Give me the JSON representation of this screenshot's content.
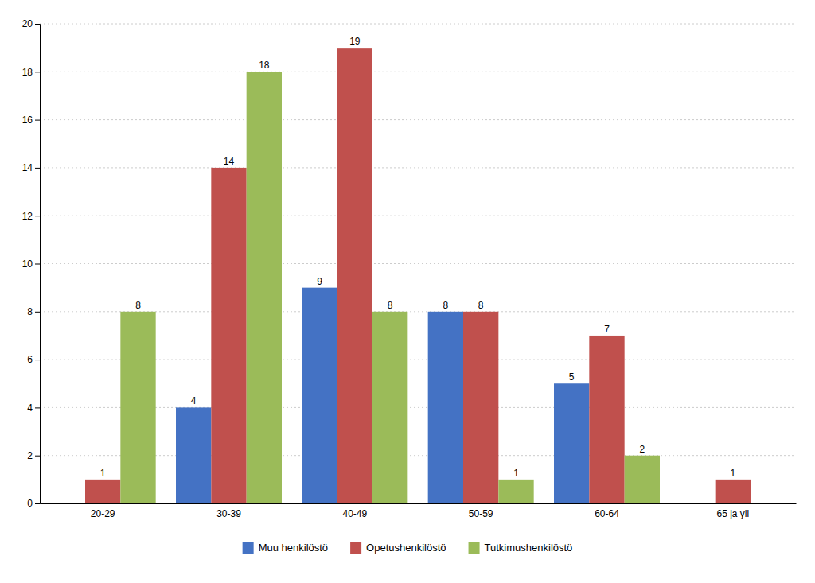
{
  "chart_data": {
    "type": "bar",
    "categories": [
      "20-29",
      "30-39",
      "40-49",
      "50-59",
      "60-64",
      "65 ja yli"
    ],
    "series": [
      {
        "name": "Muu henkilöstö",
        "color": "#4472C4",
        "values": [
          0,
          4,
          9,
          8,
          5,
          0
        ]
      },
      {
        "name": "Opetushenkilöstö",
        "color": "#C0504D",
        "values": [
          1,
          14,
          19,
          8,
          7,
          1
        ]
      },
      {
        "name": "Tutkimushenkilöstö",
        "color": "#9BBB59",
        "values": [
          8,
          18,
          8,
          1,
          2,
          0
        ]
      }
    ],
    "ylim": [
      0,
      20
    ],
    "yticks": [
      0,
      2,
      4,
      6,
      8,
      10,
      12,
      14,
      16,
      18,
      20
    ],
    "grid": true,
    "legend": "bottom",
    "data_labels": true
  }
}
